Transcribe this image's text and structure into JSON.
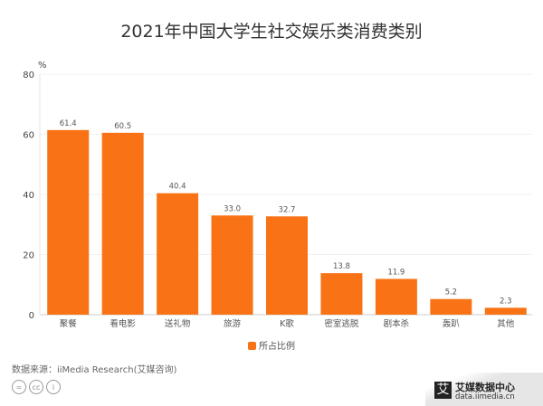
{
  "title": "2021年中国大学生社交娱乐类消费类别",
  "chart_data": {
    "type": "bar",
    "title": "2021年中国大学生社交娱乐类消费类别",
    "ylabel": "%",
    "ylim": [
      0,
      80
    ],
    "yticks": [
      0,
      20,
      40,
      60,
      80
    ],
    "categories": [
      "聚餐",
      "看电影",
      "送礼物",
      "旅游",
      "K歌",
      "密室逃脱",
      "剧本杀",
      "轰趴",
      "其他"
    ],
    "series": [
      {
        "name": "所占比例",
        "values": [
          61.4,
          60.5,
          40.4,
          33.0,
          32.7,
          13.8,
          11.9,
          5.2,
          2.3
        ],
        "color": "#f97316"
      }
    ],
    "grid": true,
    "legend": "bottom"
  },
  "source": "数据来源：iiMedia Research(艾媒咨询)",
  "brand": {
    "logo": "艾",
    "name": "艾媒数据中心",
    "url": "data.iimedia.cn"
  },
  "license_icons": [
    "nd-icon",
    "cc-icon",
    "by-icon"
  ]
}
